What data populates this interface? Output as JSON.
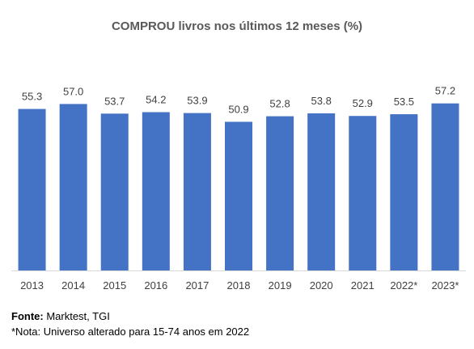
{
  "chart_data": {
    "type": "bar",
    "title": "COMPROU livros nos últimos 12 meses (%)",
    "categories": [
      "2013",
      "2014",
      "2015",
      "2016",
      "2017",
      "2018",
      "2019",
      "2020",
      "2021",
      "2022*",
      "2023*"
    ],
    "values": [
      55.3,
      57.0,
      53.7,
      54.2,
      53.9,
      50.9,
      52.8,
      53.8,
      52.9,
      53.5,
      57.2
    ],
    "value_labels": [
      "55.3",
      "57.0",
      "53.7",
      "54.2",
      "53.9",
      "50.9",
      "52.8",
      "53.8",
      "52.9",
      "53.5",
      "57.2"
    ],
    "ylim": [
      0,
      61
    ],
    "bar_color": "#4472C4",
    "grid": false,
    "legend": "none"
  },
  "footnotes": {
    "source_label": "Fonte:",
    "source_text": " Marktest, TGI",
    "note": "*Nota: Universo alterado para 15-74 anos em 2022"
  }
}
